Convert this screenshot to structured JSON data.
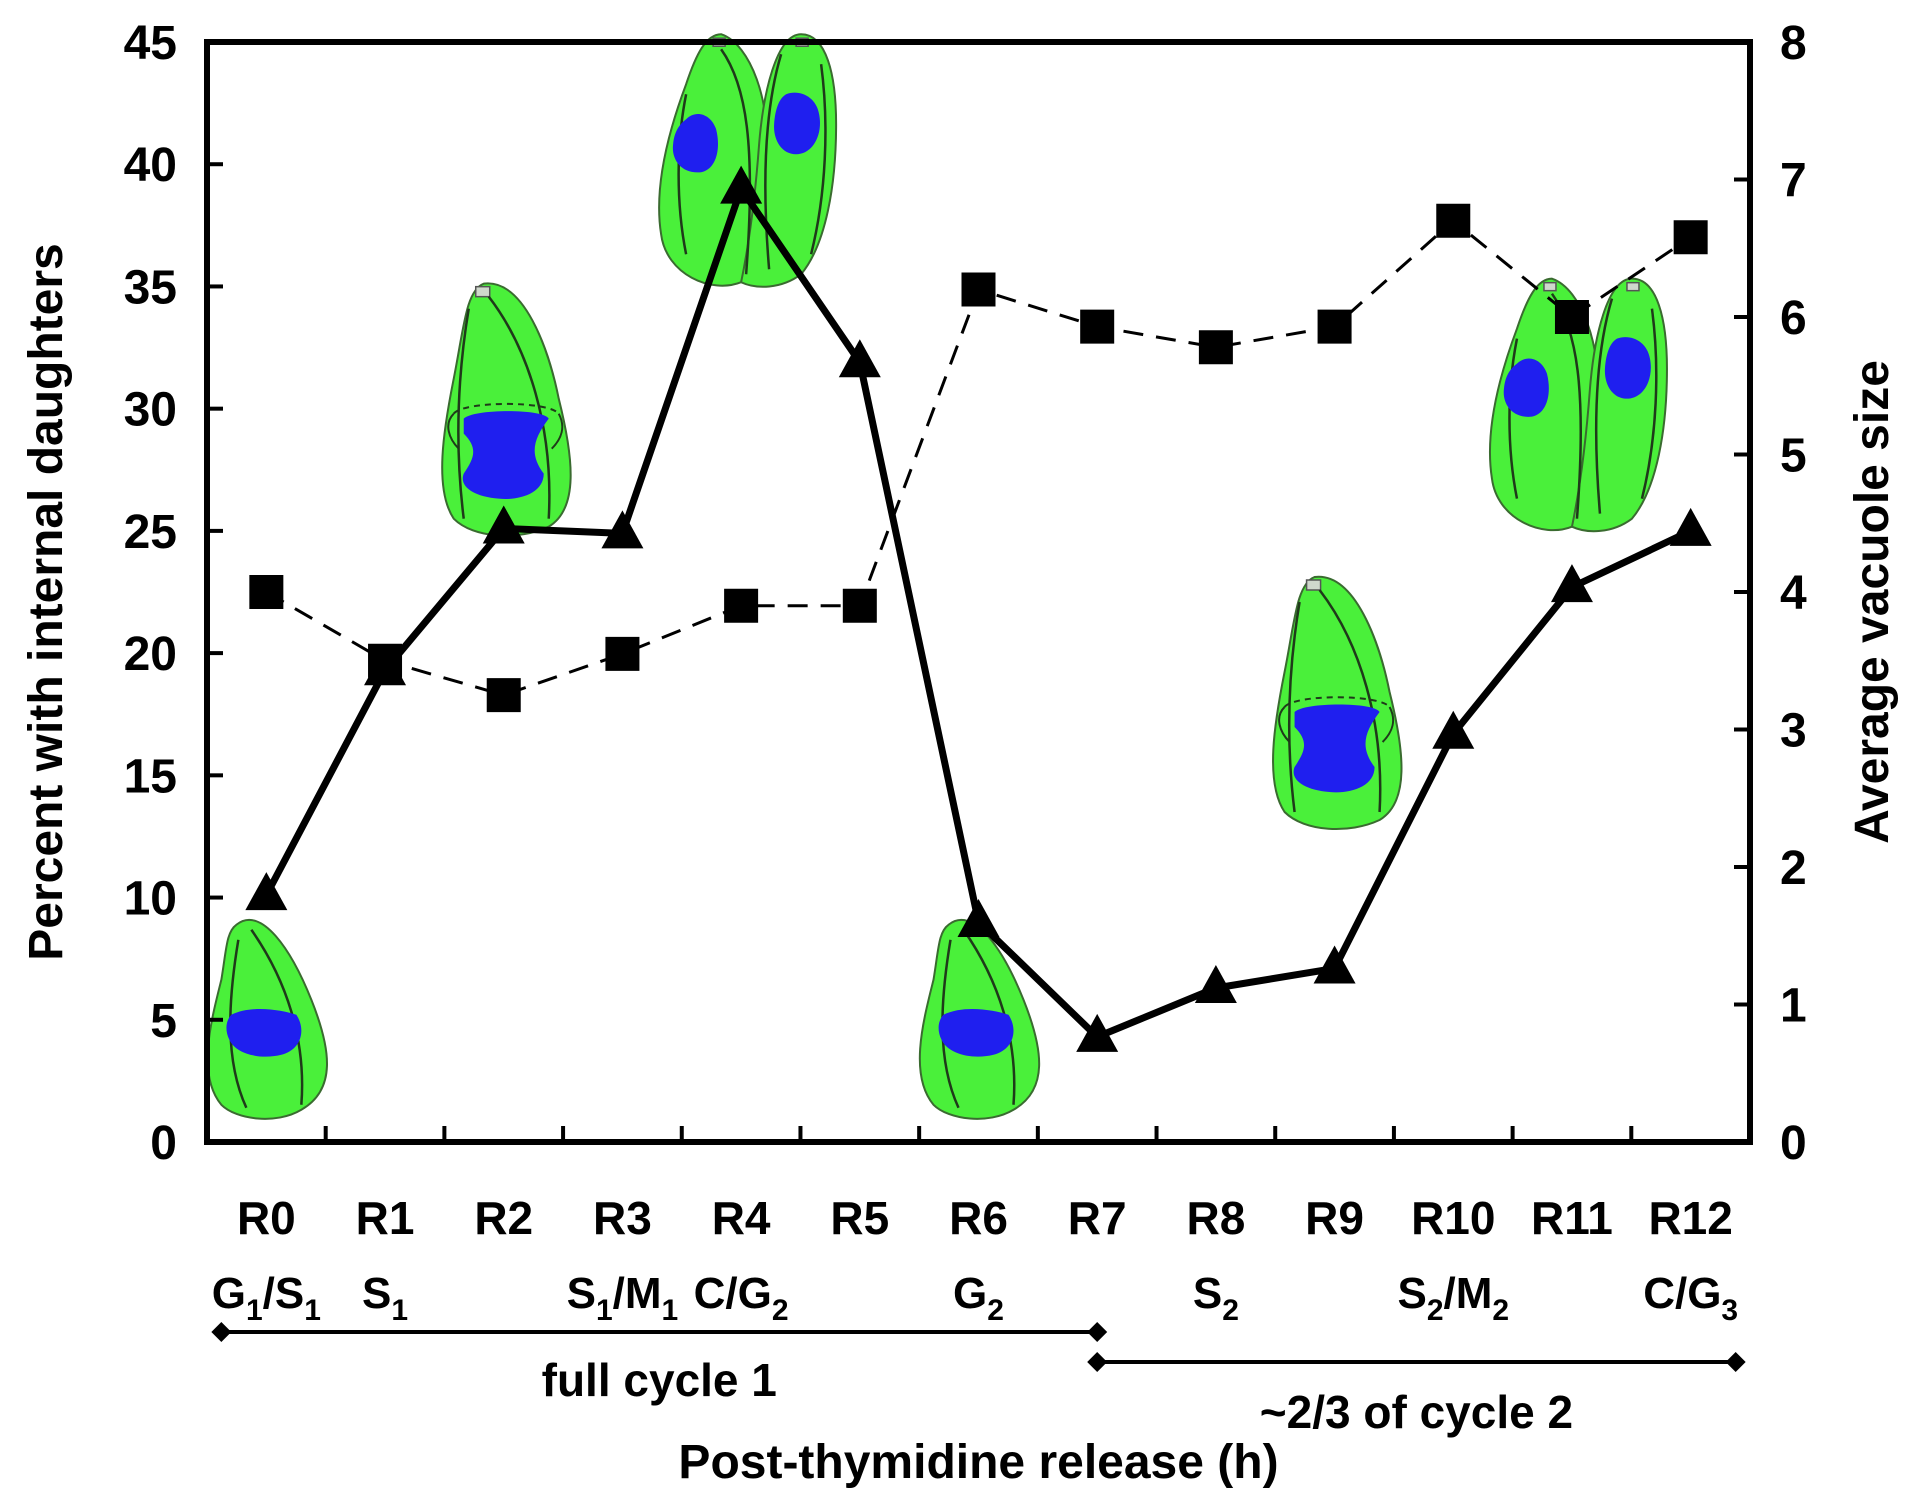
{
  "chart_data": {
    "type": "line",
    "categories": [
      "R0",
      "R1",
      "R2",
      "R3",
      "R4",
      "R5",
      "R6",
      "R7",
      "R8",
      "R9",
      "R10",
      "R11",
      "R12"
    ],
    "phases": [
      {
        "base": "G",
        "sub": "1",
        "mid": "/S",
        "sub2": "1"
      },
      {
        "base": "S",
        "sub": "1",
        "mid": "",
        "sub2": ""
      },
      {
        "base": "",
        "sub": "",
        "mid": "",
        "sub2": ""
      },
      {
        "base": "S",
        "sub": "1",
        "mid": "/M",
        "sub2": "1"
      },
      {
        "base": "C/G",
        "sub": "2",
        "mid": "",
        "sub2": ""
      },
      {
        "base": "",
        "sub": "",
        "mid": "",
        "sub2": ""
      },
      {
        "base": "G",
        "sub": "2",
        "mid": "",
        "sub2": ""
      },
      {
        "base": "",
        "sub": "",
        "mid": "",
        "sub2": ""
      },
      {
        "base": "S",
        "sub": "2",
        "mid": "",
        "sub2": ""
      },
      {
        "base": "",
        "sub": "",
        "mid": "",
        "sub2": ""
      },
      {
        "base": "S",
        "sub": "2",
        "mid": "/M",
        "sub2": "2"
      },
      {
        "base": "",
        "sub": "",
        "mid": "",
        "sub2": ""
      },
      {
        "base": "C/G",
        "sub": "3",
        "mid": "",
        "sub2": ""
      }
    ],
    "series": [
      {
        "axis": "left",
        "marker": "triangle",
        "line": "solid",
        "values": [
          10.1,
          19.3,
          25.1,
          24.9,
          39.0,
          31.9,
          9.0,
          4.3,
          6.3,
          7.1,
          16.7,
          22.7,
          25.0
        ]
      },
      {
        "axis": "right",
        "marker": "square",
        "line": "dashed",
        "values": [
          4.0,
          3.5,
          3.25,
          3.55,
          3.9,
          3.9,
          6.2,
          5.93,
          5.78,
          5.93,
          6.7,
          6.0,
          6.58
        ]
      }
    ],
    "ylabel": "Percent with internal daughters",
    "y2label": "Average vacuole size",
    "xlabel": "Post-thymidine release (h)",
    "ylim": [
      0,
      45
    ],
    "y2lim": [
      0,
      8
    ],
    "yticks": [
      "0",
      "5",
      "10",
      "15",
      "20",
      "25",
      "30",
      "35",
      "40",
      "45"
    ],
    "y2ticks": [
      "0",
      "1",
      "2",
      "3",
      "4",
      "5",
      "6",
      "7",
      "8"
    ],
    "spans": [
      {
        "label": "full cycle 1",
        "from": 0,
        "to": 7
      },
      {
        "label": "~2/3 of cycle 2",
        "from": 7,
        "to": 12
      }
    ],
    "cell_icons": [
      {
        "type": "single",
        "at": 0,
        "y": 5
      },
      {
        "type": "dividing",
        "at": 2,
        "y": 30
      },
      {
        "type": "double",
        "at": 4,
        "y": 40
      },
      {
        "type": "single",
        "at": 6,
        "y": 5
      },
      {
        "type": "dividing",
        "at": 9,
        "y": 18
      },
      {
        "type": "double",
        "at": 11,
        "y": 30
      }
    ],
    "grid": false,
    "legend": "none"
  }
}
